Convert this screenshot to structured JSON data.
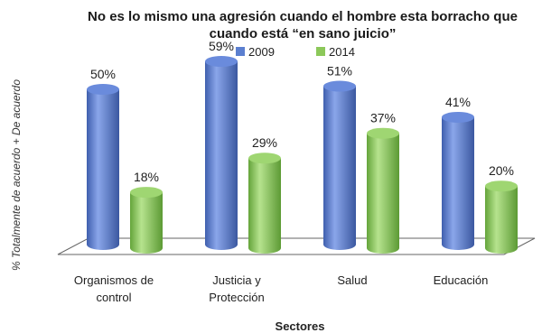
{
  "chart_data": {
    "type": "bar",
    "title_lines": [
      "No es lo mismo una agresión cuando el hombre esta borracho que",
      "cuando está “en sano juicio”"
    ],
    "xlabel": "Sectores",
    "ylabel": "% Totalmente de acuerdo + De acuerdo",
    "categories": [
      [
        "Organismos de",
        "control"
      ],
      [
        "Justicia y",
        "Protección"
      ],
      [
        "Salud"
      ],
      [
        "Educación"
      ]
    ],
    "series": [
      {
        "name": "2009",
        "values": [
          50,
          59,
          51,
          41
        ],
        "labels": [
          "50%",
          "59%",
          "51%",
          "41%"
        ],
        "color": "#5b7fd0"
      },
      {
        "name": "2014",
        "values": [
          18,
          29,
          37,
          20
        ],
        "labels": [
          "18%",
          "29%",
          "37%",
          "20%"
        ],
        "color": "#8cc85a"
      }
    ],
    "ylim": [
      0,
      60
    ],
    "legend_position": "top",
    "grid": false,
    "style": "3d-cylinder"
  }
}
